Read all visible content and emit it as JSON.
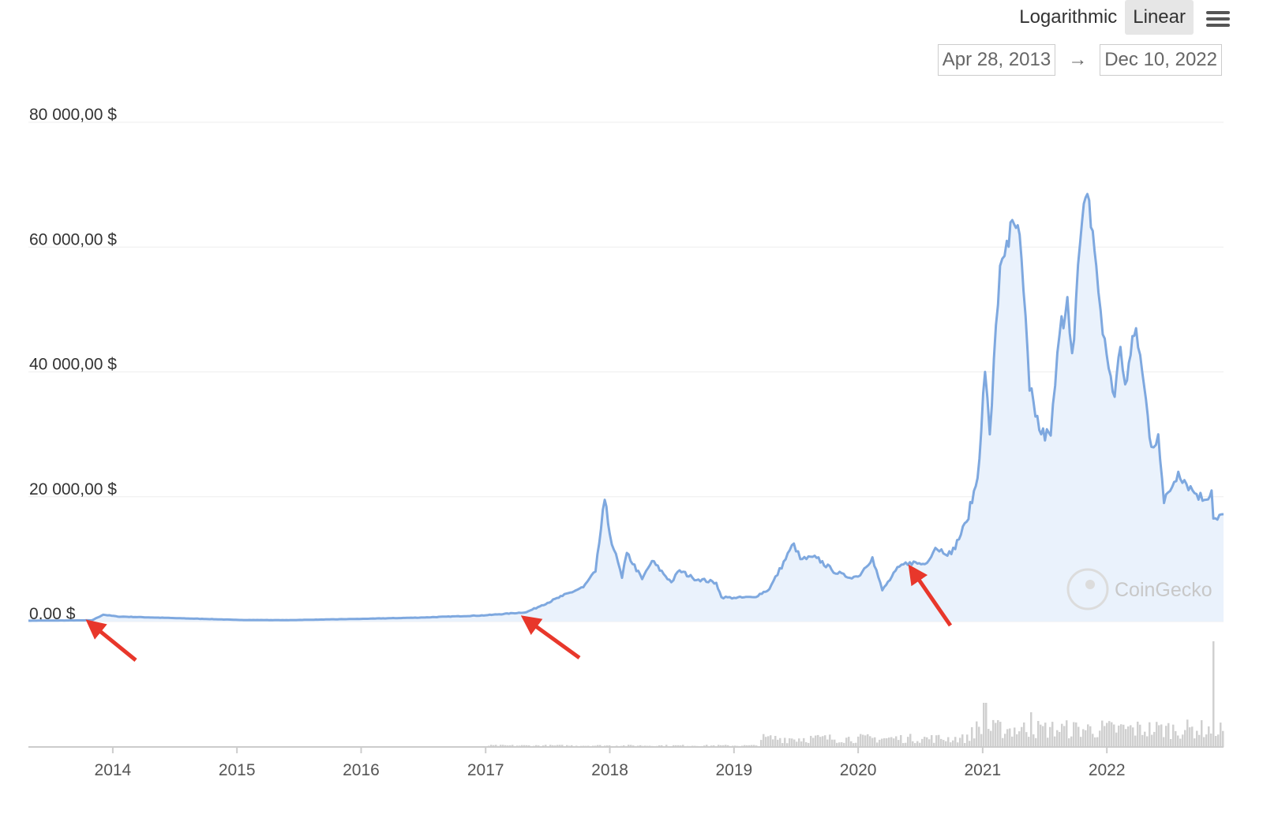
{
  "toolbar": {
    "scale_options": [
      "Logarithmic",
      "Linear"
    ],
    "selected_scale": "Linear",
    "menu_icon": "hamburger-menu-icon"
  },
  "range": {
    "from": "Apr 28, 2013",
    "to": "Dec 10, 2022",
    "separator": "→"
  },
  "watermark": {
    "text": "CoinGecko",
    "icon": "gecko-logo-icon"
  },
  "colors": {
    "line": "#7ea8df",
    "area": "#eaf2fc",
    "volume": "#d0d0d0",
    "grid": "#eeeeee",
    "arrow": "#e8372b"
  },
  "chart_data": {
    "type": "line",
    "ylim": [
      0,
      80000
    ],
    "yticks": [
      0,
      20000,
      40000,
      60000,
      80000
    ],
    "ytick_labels": [
      "0,00 $",
      "20 000,00 $",
      "40 000,00 $",
      "60 000,00 $",
      "80 000,00 $"
    ],
    "xticks": [
      "2014",
      "2015",
      "2016",
      "2017",
      "2018",
      "2019",
      "2020",
      "2021",
      "2022"
    ],
    "xlim": [
      "2013-04-28",
      "2022-12-10"
    ],
    "grid": true,
    "series": [
      {
        "x": [
          "2013-04-28",
          "2013-11-01",
          "2013-12-04",
          "2014-01-15",
          "2014-06-01",
          "2015-01-15",
          "2015-06-01",
          "2016-01-01",
          "2016-07-01",
          "2017-01-01",
          "2017-05-01",
          "2017-06-15",
          "2017-08-15",
          "2017-10-15",
          "2017-11-20",
          "2017-12-17",
          "2018-01-01",
          "2018-02-06",
          "2018-02-20",
          "2018-04-06",
          "2018-05-05",
          "2018-07-01",
          "2018-07-25",
          "2018-09-01",
          "2018-11-10",
          "2018-11-25",
          "2019-01-01",
          "2019-03-01",
          "2019-04-15",
          "2019-06-26",
          "2019-07-15",
          "2019-09-01",
          "2019-10-15",
          "2019-11-25",
          "2020-01-01",
          "2020-02-12",
          "2020-03-12",
          "2020-05-01",
          "2020-06-01",
          "2020-07-15",
          "2020-08-15",
          "2020-10-01",
          "2020-11-15",
          "2020-12-17",
          "2021-01-08",
          "2021-01-22",
          "2021-02-21",
          "2021-03-13",
          "2021-04-14",
          "2021-05-01",
          "2021-05-19",
          "2021-06-22",
          "2021-07-20",
          "2021-08-15",
          "2021-09-07",
          "2021-09-21",
          "2021-10-20",
          "2021-11-10",
          "2021-12-01",
          "2021-12-20",
          "2022-01-24",
          "2022-02-10",
          "2022-02-24",
          "2022-03-28",
          "2022-04-15",
          "2022-05-12",
          "2022-06-01",
          "2022-06-18",
          "2022-07-30",
          "2022-09-10",
          "2022-10-15",
          "2022-11-05",
          "2022-11-10",
          "2022-12-10"
        ],
        "y": [
          135,
          200,
          1100,
          800,
          600,
          250,
          230,
          430,
          650,
          1000,
          1500,
          2600,
          4100,
          5500,
          8000,
          19500,
          14000,
          7000,
          11000,
          6800,
          9700,
          6300,
          8200,
          7000,
          6200,
          3900,
          3800,
          3900,
          5200,
          12500,
          10000,
          10200,
          8300,
          7200,
          7200,
          10300,
          5000,
          8800,
          9500,
          9200,
          11800,
          10800,
          16000,
          23000,
          40000,
          30000,
          57000,
          61000,
          63500,
          53000,
          37000,
          30000,
          29800,
          46000,
          52000,
          43000,
          64000,
          67500,
          57000,
          46000,
          36000,
          44000,
          38000,
          47000,
          40000,
          28000,
          30000,
          19000,
          24000,
          21000,
          19500,
          21000,
          16500,
          17200
        ]
      }
    ]
  }
}
